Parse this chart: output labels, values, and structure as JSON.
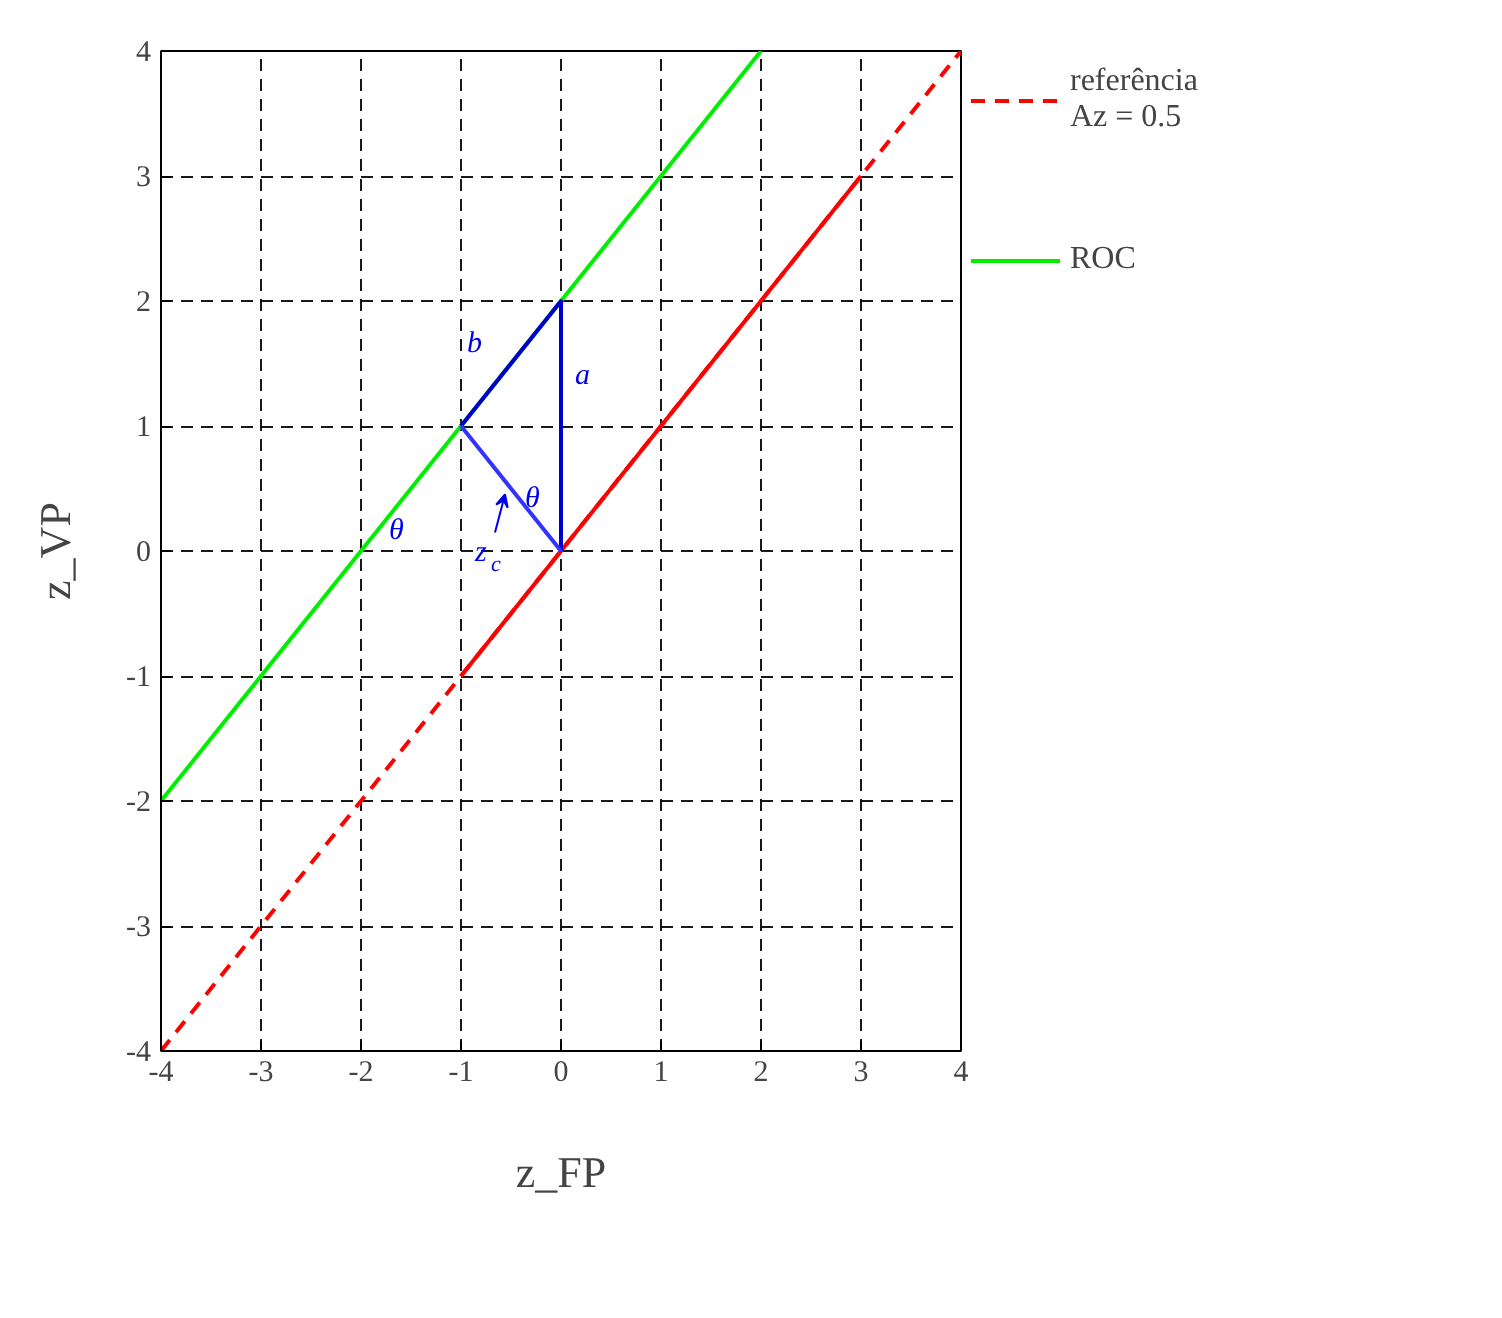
{
  "chart_data": {
    "type": "line",
    "xlabel": "z_FP",
    "ylabel": "z_VP",
    "xlim": [
      -4,
      4
    ],
    "ylim": [
      -4,
      4
    ],
    "xticks": [
      -4,
      -3,
      -2,
      -1,
      0,
      1,
      2,
      3,
      4
    ],
    "yticks": [
      -4,
      -3,
      -2,
      -1,
      0,
      1,
      2,
      3,
      4
    ],
    "grid": true,
    "legend": "right",
    "series": [
      {
        "name": "referência\nAz = 0.5",
        "color": "#ff0000",
        "line_style": "dashed",
        "x": [
          -4,
          4
        ],
        "values": [
          -4,
          4
        ]
      },
      {
        "color": "#ff0000",
        "line_style": "solid",
        "x": [
          -1,
          3
        ],
        "values": [
          -1,
          3
        ]
      },
      {
        "name": "ROC",
        "color": "#00ee00",
        "line_style": "solid",
        "x": [
          -4,
          2
        ],
        "values": [
          -2,
          4
        ]
      },
      {
        "color": "#0000cc",
        "line_style": "solid",
        "x": [
          -1,
          0,
          0
        ],
        "values": [
          1,
          2,
          0
        ]
      },
      {
        "color": "#3333ff",
        "line_style": "solid",
        "x": [
          -1,
          0
        ],
        "values": [
          1,
          0
        ]
      }
    ],
    "annotations": [
      {
        "text": "a",
        "x": 0,
        "y": 1.4
      },
      {
        "text": "b",
        "x": -0.5,
        "y": 1.5
      },
      {
        "text": "θ",
        "x": -2,
        "y": 0
      },
      {
        "text": "θ",
        "x": 0,
        "y": 0
      },
      {
        "text": "z$_{c}$",
        "x": -0.5,
        "y": 0.5
      }
    ]
  }
}
